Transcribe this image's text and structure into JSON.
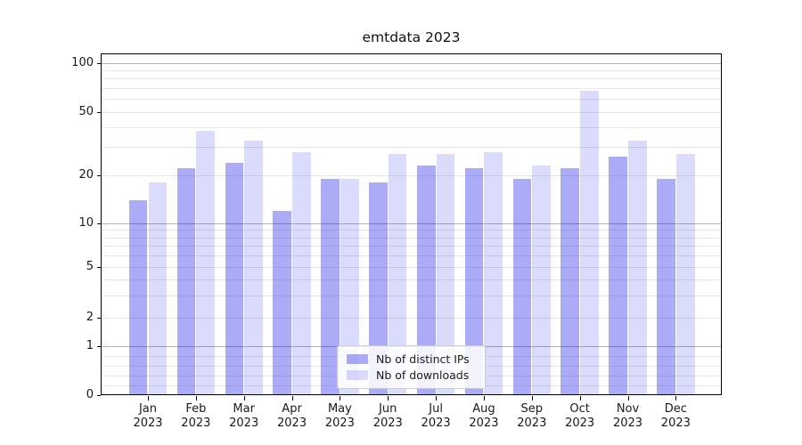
{
  "chart_data": {
    "type": "bar",
    "title": "emtdata 2023",
    "categories": [
      {
        "month": "Jan",
        "year": "2023"
      },
      {
        "month": "Feb",
        "year": "2023"
      },
      {
        "month": "Mar",
        "year": "2023"
      },
      {
        "month": "Apr",
        "year": "2023"
      },
      {
        "month": "May",
        "year": "2023"
      },
      {
        "month": "Jun",
        "year": "2023"
      },
      {
        "month": "Jul",
        "year": "2023"
      },
      {
        "month": "Aug",
        "year": "2023"
      },
      {
        "month": "Sep",
        "year": "2023"
      },
      {
        "month": "Oct",
        "year": "2023"
      },
      {
        "month": "Nov",
        "year": "2023"
      },
      {
        "month": "Dec",
        "year": "2023"
      }
    ],
    "series": [
      {
        "name": "Nb of distinct IPs",
        "color": "rgba(13,13,234,0.35)",
        "values": [
          14,
          22,
          24,
          12,
          19,
          18,
          23,
          22,
          19,
          22,
          26,
          19
        ]
      },
      {
        "name": "Nb of downloads",
        "color": "rgba(13,13,234,0.15)",
        "values": [
          18,
          38,
          33,
          28,
          19,
          27,
          27,
          28,
          23,
          67,
          33,
          27
        ]
      }
    ],
    "y_ticks": [
      100,
      50,
      20,
      10,
      5,
      2,
      1,
      0
    ],
    "y_scale": "log-like above 1 (compressed low decade, asinh-style), linear 0 to 1",
    "ylim": [
      0,
      115
    ],
    "grid": "horizontal; strong lines at 1, 10, 100; faint minor lines between",
    "legend_position": "lower center inside plot"
  },
  "colors": {
    "grid_major": "#b3b3b3",
    "grid_minor": "#e7e7e7",
    "spine": "#000000",
    "text": "#1a1a1a",
    "legend_border": "#cccccc"
  }
}
